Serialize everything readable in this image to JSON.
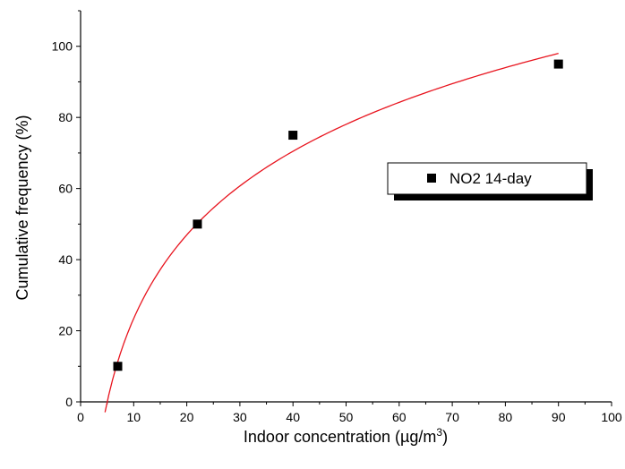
{
  "chart_data": {
    "type": "scatter",
    "xlabel": "Indoor concentration (µg/m",
    "xlabel_sup": "3",
    "xlabel_end": ")",
    "ylabel": "Cumulative frequency (%)",
    "xlim": [
      0,
      100
    ],
    "ylim": [
      0,
      110
    ],
    "x_ticks": [
      0,
      10,
      20,
      30,
      40,
      50,
      60,
      70,
      80,
      90,
      100
    ],
    "y_ticks": [
      0,
      20,
      40,
      60,
      80,
      100
    ],
    "grid": false,
    "legend_position": "right",
    "series": [
      {
        "name": "NO2 14-day",
        "marker": "square",
        "color": "#000000",
        "points": [
          {
            "x": 7,
            "y": 10
          },
          {
            "x": 22,
            "y": 50
          },
          {
            "x": 40,
            "y": 75
          },
          {
            "x": 90,
            "y": 95
          }
        ]
      }
    ],
    "fit_line": {
      "color": "#e8141e",
      "model": "logarithmic",
      "x_range": [
        4.6,
        90
      ]
    }
  }
}
